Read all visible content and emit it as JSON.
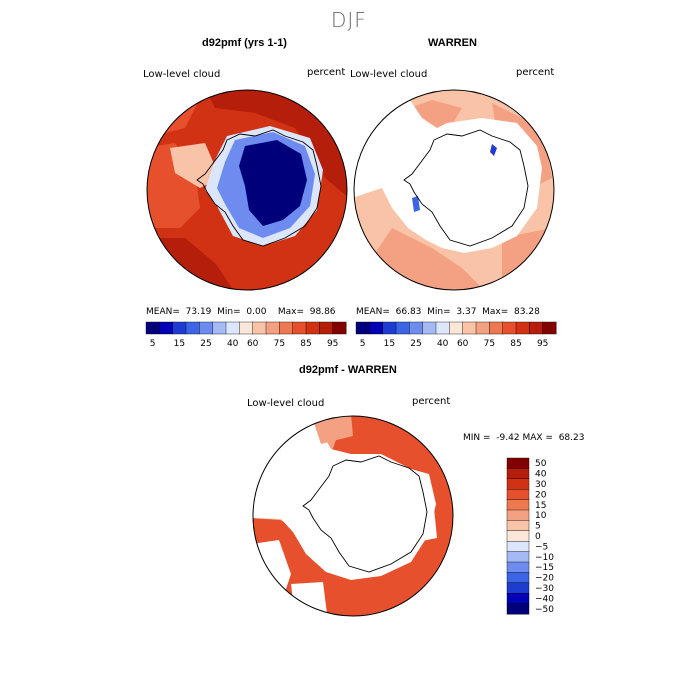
{
  "season_title": "DJF",
  "colors": {
    "cb_main": [
      "#00007a",
      "#0000b4",
      "#1e3cd2",
      "#3c64e6",
      "#6e8cf0",
      "#a5b9f5",
      "#dce6fa",
      "#fbe6da",
      "#f9c3a8",
      "#f4a082",
      "#ee7850",
      "#e6502d",
      "#d23214",
      "#b41e0a",
      "#820000"
    ],
    "cb_diff": [
      "#820000",
      "#b41e0a",
      "#d23214",
      "#e6502d",
      "#ee7850",
      "#f4a082",
      "#f9c3a8",
      "#fbe6da",
      "#dce6fa",
      "#a5b9f5",
      "#6e8cf0",
      "#3c64e6",
      "#1e3cd2",
      "#0000b4",
      "#00007a"
    ],
    "land": "#ffffff"
  },
  "panels": {
    "left": {
      "title": "d92pmf (yrs 1-1)",
      "field": "Low-level cloud",
      "units": "percent",
      "stats": {
        "mean_label": "MEAN=",
        "mean": "73.19",
        "min_label": "Min=",
        "min": "0.00",
        "max_label": "Max=",
        "max": "98.86"
      }
    },
    "right": {
      "title": "WARREN",
      "field": "Low-level cloud",
      "units": "percent",
      "stats": {
        "mean_label": "MEAN=",
        "mean": "66.83",
        "min_label": "Min=",
        "min": "3.37",
        "max_label": "Max=",
        "max": "83.28"
      }
    },
    "diff": {
      "title": "d92pmf - WARREN",
      "field": "Low-level cloud",
      "units": "percent",
      "stats": {
        "min_label": "MIN =",
        "min": "-9.42",
        "max_label": "MAX =",
        "max": "68.23"
      }
    }
  },
  "chart_data": [
    {
      "type": "heatmap",
      "title": "d92pmf (yrs 1-1)",
      "subtitle": "Low-level cloud",
      "units": "percent",
      "projection": "south-polar stereographic",
      "colorbar": {
        "ticks": [
          "5",
          "15",
          "25",
          "40",
          "60",
          "75",
          "85",
          "95"
        ],
        "levels": 15,
        "orientation": "horizontal"
      },
      "stats": {
        "mean": 73.19,
        "min": 0.0,
        "max": 98.86
      }
    },
    {
      "type": "heatmap",
      "title": "WARREN",
      "subtitle": "Low-level cloud",
      "units": "percent",
      "projection": "south-polar stereographic",
      "colorbar": {
        "ticks": [
          "5",
          "15",
          "25",
          "40",
          "60",
          "75",
          "85",
          "95"
        ],
        "levels": 15,
        "orientation": "horizontal"
      },
      "stats": {
        "mean": 66.83,
        "min": 3.37,
        "max": 83.28
      }
    },
    {
      "type": "heatmap",
      "title": "d92pmf - WARREN",
      "subtitle": "Low-level cloud",
      "units": "percent",
      "projection": "south-polar stereographic",
      "colorbar": {
        "ticks": [
          "50",
          "40",
          "30",
          "20",
          "15",
          "10",
          "5",
          "0",
          "−5",
          "−10",
          "−15",
          "−20",
          "−30",
          "−40",
          "−50"
        ],
        "orientation": "vertical"
      },
      "stats": {
        "min": -9.42,
        "max": 68.23
      }
    }
  ]
}
